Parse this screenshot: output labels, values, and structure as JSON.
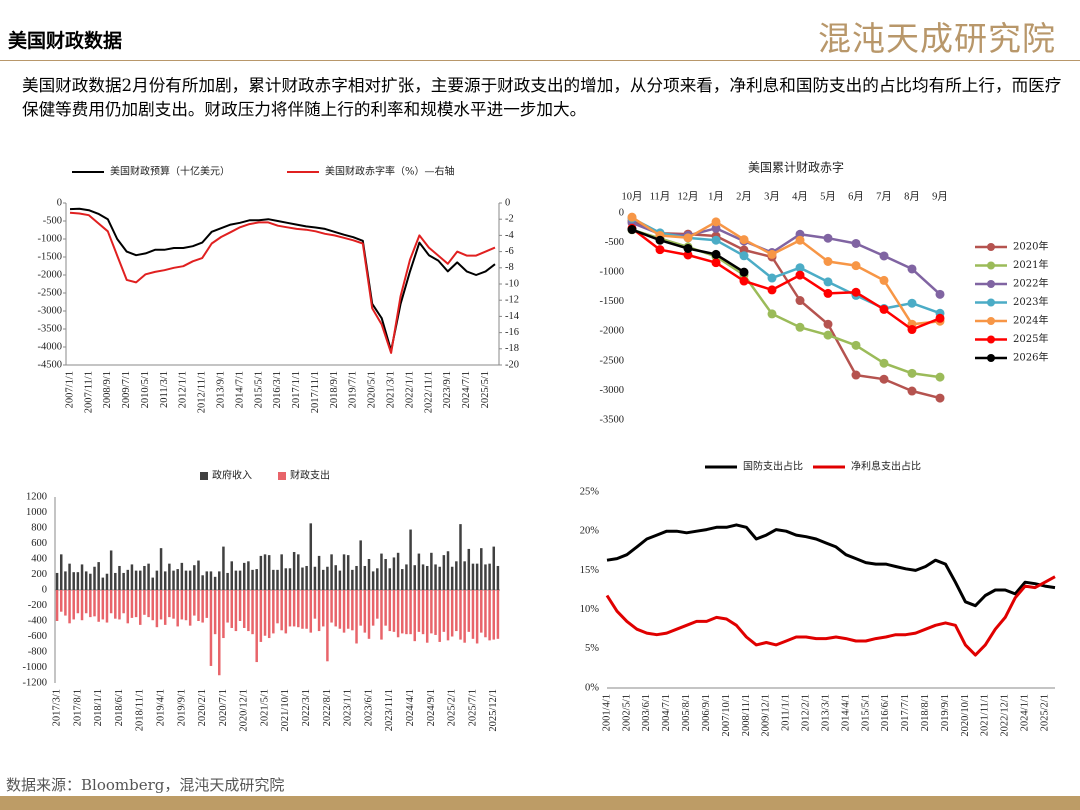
{
  "header": {
    "title": "美国财政数据",
    "logo": "混沌天成研究院"
  },
  "commentary": "美国财政数据2月份有所加剧，累计财政赤字相对扩张，主要源于财政支出的增加，从分项来看，净利息和国防支出的占比均有所上行，而医疗保健等费用仍加剧支出。财政压力将伴随上行的利率和规模水平进一步加大。",
  "source": "数据来源：Bloomberg，混沌天成研究院",
  "chart_data": [
    {
      "type": "line",
      "categories": [
        "2007/1/1",
        null,
        "2007/11/1",
        null,
        "2008/9/1",
        null,
        "2009/7/1",
        null,
        "2010/5/1",
        null,
        "2011/3/1",
        null,
        "2012/1/1",
        null,
        "2012/11/1",
        null,
        "2013/9/1",
        null,
        "2014/7/1",
        null,
        "2015/5/1",
        null,
        "2016/3/1",
        null,
        "2017/1/1",
        null,
        "2017/11/1",
        null,
        "2018/9/1",
        null,
        "2019/7/1",
        null,
        "2020/5/1",
        null,
        "2021/3/1",
        null,
        "2022/1/1",
        null,
        "2022/11/1",
        null,
        "2023/9/1",
        null,
        "2024/7/1",
        null,
        "2025/5/1",
        null
      ],
      "series": [
        {
          "name": "美国财政预算（十亿美元）",
          "color": "#000000",
          "values": [
            -170,
            -160,
            -200,
            -300,
            -450,
            -1000,
            -1350,
            -1450,
            -1400,
            -1300,
            -1300,
            -1250,
            -1250,
            -1200,
            -1100,
            -800,
            -700,
            -600,
            -550,
            -480,
            -480,
            -450,
            -500,
            -550,
            -600,
            -650,
            -680,
            -720,
            -800,
            -880,
            -950,
            -1050,
            -2800,
            -3200,
            -4100,
            -2800,
            -1900,
            -1100,
            -1450,
            -1600,
            -1900,
            -1650,
            -1900,
            -2000,
            -1900,
            -1700
          ]
        },
        {
          "name": "美国财政赤字率（%）—右轴",
          "color": "#e02020",
          "axis": "y2",
          "values": [
            -1.2,
            -1.3,
            -1.5,
            -2.5,
            -3.5,
            -6.5,
            -9.5,
            -9.8,
            -8.8,
            -8.5,
            -8.3,
            -8.0,
            -7.8,
            -7.2,
            -6.8,
            -5.0,
            -4.2,
            -3.6,
            -3.0,
            -2.6,
            -2.4,
            -2.4,
            -2.8,
            -3.0,
            -3.2,
            -3.3,
            -3.5,
            -3.8,
            -4.0,
            -4.3,
            -4.6,
            -5.0,
            -13.0,
            -15.0,
            -18.5,
            -11.5,
            -7.0,
            -4.0,
            -5.5,
            -6.5,
            -7.5,
            -6.0,
            -6.5,
            -6.5,
            -6.0,
            -5.5
          ]
        }
      ],
      "ylim": [
        -4500,
        0
      ],
      "yticks": [
        0,
        -500,
        -1000,
        -1500,
        -2000,
        -2500,
        -3000,
        -3500,
        -4000,
        -4500
      ],
      "y2lim": [
        -20,
        0
      ],
      "y2ticks": [
        0,
        -2,
        -4,
        -6,
        -8,
        -10,
        -12,
        -14,
        -16,
        -18,
        -20
      ]
    },
    {
      "type": "line",
      "title": "美国累计财政赤字",
      "markers": true,
      "legend": "right",
      "categories": [
        "10月",
        "11月",
        "12月",
        "1月",
        "2月",
        "3月",
        "4月",
        "5月",
        "6月",
        "7月",
        "8月",
        "9月"
      ],
      "series": [
        {
          "name": "2020年",
          "color": "#b5534f",
          "values": [
            -134,
            -343,
            -357,
            -389,
            -625,
            -744,
            -1480,
            -1880,
            -2740,
            -2810,
            -3010,
            -3130
          ]
        },
        {
          "name": "2021年",
          "color": "#9bbb59",
          "values": [
            -284,
            -429,
            -573,
            -736,
            -1047,
            -1706,
            -1932,
            -2064,
            -2238,
            -2540,
            -2711,
            -2775
          ]
        },
        {
          "name": "2022年",
          "color": "#8064a2",
          "values": [
            -165,
            -357,
            -378,
            -259,
            -475,
            -668,
            -360,
            -426,
            -515,
            -726,
            -946,
            -1375
          ]
        },
        {
          "name": "2023年",
          "color": "#4bacc6",
          "values": [
            -88,
            -336,
            -421,
            -460,
            -723,
            -1100,
            -925,
            -1165,
            -1393,
            -1614,
            -1525,
            -1695
          ]
        },
        {
          "name": "2024年",
          "color": "#f79646",
          "values": [
            -70,
            -380,
            -420,
            -150,
            -450,
            -700,
            -460,
            -820,
            -890,
            -1140,
            -1880,
            -1830
          ]
        },
        {
          "name": "2025年",
          "color": "#ff0000",
          "values": [
            -260,
            -620,
            -710,
            -840,
            -1150,
            -1300,
            -1050,
            -1360,
            -1340,
            -1630,
            -1970,
            -1780
          ]
        },
        {
          "name": "2026年",
          "color": "#000000",
          "values": [
            -280,
            -460,
            -600,
            -700,
            -1000,
            null,
            null,
            null,
            null,
            null,
            null,
            null
          ]
        }
      ],
      "ylim": [
        -3500,
        0
      ],
      "yticks": [
        0,
        -500,
        -1000,
        -1500,
        -2000,
        -2500,
        -3000,
        -3500
      ]
    },
    {
      "type": "bar",
      "categories": [
        "2017/3/1",
        null,
        null,
        null,
        null,
        "2017/8/1",
        null,
        null,
        null,
        null,
        "2018/1/1",
        null,
        null,
        null,
        null,
        "2018/6/1",
        null,
        null,
        null,
        null,
        "2018/11/1",
        null,
        null,
        null,
        null,
        "2019/4/1",
        null,
        null,
        null,
        null,
        "2019/9/1",
        null,
        null,
        null,
        null,
        "2020/2/1",
        null,
        null,
        null,
        null,
        "2020/7/1",
        null,
        null,
        null,
        null,
        "2020/12/1",
        null,
        null,
        null,
        null,
        "2021/5/1",
        null,
        null,
        null,
        null,
        "2021/10/1",
        null,
        null,
        null,
        null,
        "2022/3/1",
        null,
        null,
        null,
        null,
        "2022/8/1",
        null,
        null,
        null,
        null,
        "2023/1/1",
        null,
        null,
        null,
        null,
        "2023/6/1",
        null,
        null,
        null,
        null,
        "2023/11/1",
        null,
        null,
        null,
        null,
        "2024/4/1",
        null,
        null,
        null,
        null,
        "2024/9/1",
        null,
        null,
        null,
        null,
        "2025/2/1",
        null,
        null,
        null,
        null,
        "2025/7/1",
        null,
        null,
        null,
        null,
        "2025/12/1",
        null
      ],
      "series": [
        {
          "name": "政府收入",
          "color": "#404040",
          "values": [
            220,
            460,
            240,
            340,
            230,
            230,
            330,
            240,
            210,
            300,
            360,
            160,
            210,
            510,
            220,
            310,
            220,
            260,
            330,
            250,
            250,
            310,
            340,
            160,
            250,
            540,
            240,
            340,
            250,
            270,
            350,
            250,
            250,
            320,
            380,
            190,
            240,
            240,
            170,
            240,
            560,
            220,
            370,
            250,
            250,
            350,
            370,
            260,
            270,
            440,
            460,
            450,
            260,
            260,
            460,
            280,
            280,
            490,
            460,
            290,
            310,
            860,
            300,
            440,
            260,
            300,
            460,
            320,
            250,
            460,
            450,
            260,
            310,
            640,
            310,
            400,
            240,
            280,
            470,
            400,
            280,
            420,
            480,
            270,
            330,
            780,
            320,
            470,
            330,
            310,
            480,
            330,
            300,
            450,
            500,
            300,
            370,
            850,
            370,
            530,
            340,
            340,
            540,
            330,
            340,
            560,
            310
          ]
        },
        {
          "name": "财政支出",
          "color": "#e8646a",
          "values": [
            -400,
            -280,
            -330,
            -430,
            -380,
            -300,
            -390,
            -300,
            -350,
            -340,
            -410,
            -380,
            -420,
            -300,
            -370,
            -380,
            -300,
            -430,
            -360,
            -350,
            -450,
            -320,
            -350,
            -390,
            -480,
            -380,
            -450,
            -350,
            -370,
            -470,
            -380,
            -390,
            -460,
            -330,
            -400,
            -420,
            -360,
            -980,
            -570,
            -1100,
            -620,
            -420,
            -490,
            -530,
            -400,
            -490,
            -530,
            -570,
            -930,
            -670,
            -590,
            -620,
            -560,
            -430,
            -520,
            -560,
            -470,
            -470,
            -480,
            -500,
            -500,
            -550,
            -370,
            -530,
            -470,
            -920,
            -420,
            -470,
            -500,
            -550,
            -500,
            -520,
            -690,
            -460,
            -550,
            -630,
            -460,
            -370,
            -640,
            -460,
            -530,
            -540,
            -610,
            -560,
            -570,
            -570,
            -660,
            -540,
            -570,
            -680,
            -560,
            -580,
            -670,
            -540,
            -650,
            -600,
            -530,
            -640,
            -680,
            -540,
            -630,
            -690,
            -550,
            -610,
            -650,
            -640,
            -630
          ]
        }
      ],
      "ylim": [
        -1200,
        1200
      ],
      "yticks": [
        1200,
        1000,
        800,
        600,
        400,
        200,
        0,
        -200,
        -400,
        -600,
        -800,
        -1000,
        -1200
      ]
    },
    {
      "type": "line",
      "categories": [
        "2001/4/1",
        null,
        "2002/5/1",
        null,
        "2003/6/1",
        null,
        "2004/7/1",
        null,
        "2005/8/1",
        null,
        "2006/9/1",
        null,
        "2007/10/1",
        null,
        "2008/11/1",
        null,
        "2009/12/1",
        null,
        "2011/1/1",
        null,
        "2012/2/1",
        null,
        "2013/3/1",
        null,
        "2014/4/1",
        null,
        "2015/5/1",
        null,
        "2016/6/1",
        null,
        "2017/7/1",
        null,
        "2018/8/1",
        null,
        "2019/9/1",
        null,
        "2020/10/1",
        null,
        "2021/11/1",
        null,
        "2022/12/1",
        null,
        "2024/1/1",
        null,
        "2025/2/1",
        null
      ],
      "series": [
        {
          "name": "国防支出占比",
          "color": "#000000",
          "values": [
            16.3,
            16.5,
            17.0,
            18.0,
            19.0,
            19.5,
            20.0,
            20.0,
            19.8,
            20.0,
            20.2,
            20.5,
            20.5,
            20.8,
            20.5,
            19.0,
            19.5,
            20.2,
            20.0,
            19.5,
            19.3,
            19.0,
            18.5,
            18.0,
            17.0,
            16.5,
            16.0,
            15.8,
            15.8,
            15.5,
            15.2,
            15.0,
            15.5,
            16.3,
            15.8,
            13.5,
            11.0,
            10.5,
            11.8,
            12.5,
            12.5,
            12.0,
            13.5,
            13.3,
            13.0,
            12.8
          ]
        },
        {
          "name": "净利息支出占比",
          "color": "#e00000",
          "values": [
            11.8,
            9.8,
            8.5,
            7.5,
            7.0,
            6.8,
            7.0,
            7.5,
            8.0,
            8.5,
            8.5,
            9.0,
            8.8,
            8.0,
            6.5,
            5.5,
            5.8,
            5.5,
            6.0,
            6.5,
            6.5,
            6.3,
            6.3,
            6.5,
            6.3,
            6.0,
            6.0,
            6.3,
            6.5,
            6.8,
            6.8,
            7.0,
            7.5,
            8.0,
            8.3,
            8.0,
            5.5,
            4.2,
            5.5,
            7.5,
            9.0,
            11.5,
            13.0,
            12.8,
            13.5,
            14.2
          ]
        }
      ],
      "ylim": [
        0,
        25
      ],
      "yticks": [
        {
          "value": 25,
          "label": "25%"
        },
        {
          "value": 20,
          "label": "20%"
        },
        {
          "value": 15,
          "label": "15%"
        },
        {
          "value": 10,
          "label": "10%"
        },
        {
          "value": 5,
          "label": "5%"
        },
        {
          "value": 0,
          "label": "0%"
        }
      ]
    }
  ]
}
